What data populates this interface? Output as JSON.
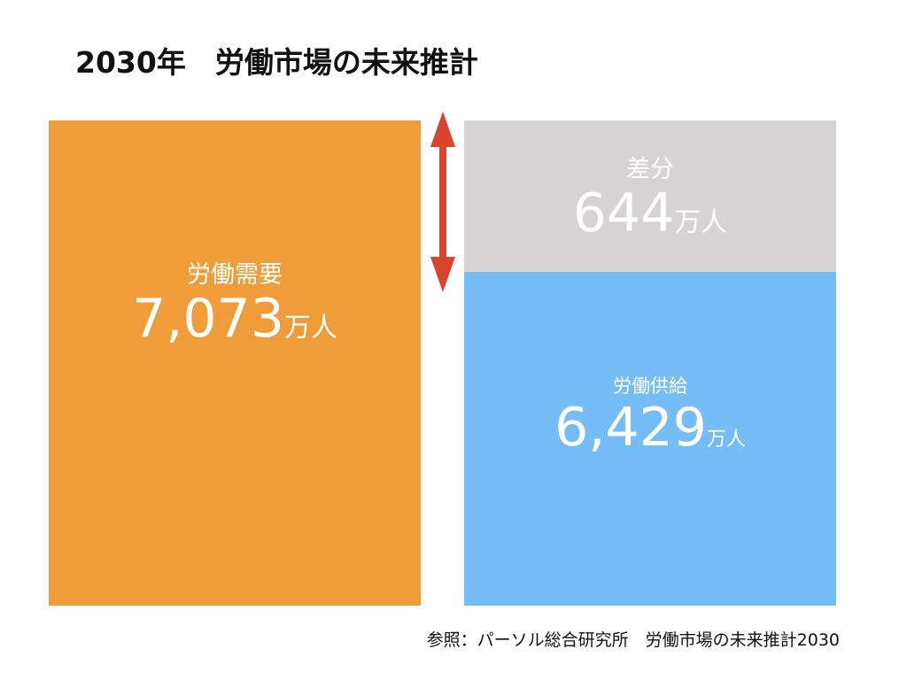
{
  "header": {
    "title": "2030年　労働市場の未来推計"
  },
  "demand": {
    "label": "労働需要",
    "value": "7,073",
    "unit": "万人"
  },
  "gap": {
    "label": "差分",
    "value": "644",
    "unit": "万人"
  },
  "supply": {
    "label": "労働供給",
    "value": "6,429",
    "unit": "万人"
  },
  "footer": {
    "source": "参照：パーソル総合研究所　労働市場の未来推計2030"
  }
}
